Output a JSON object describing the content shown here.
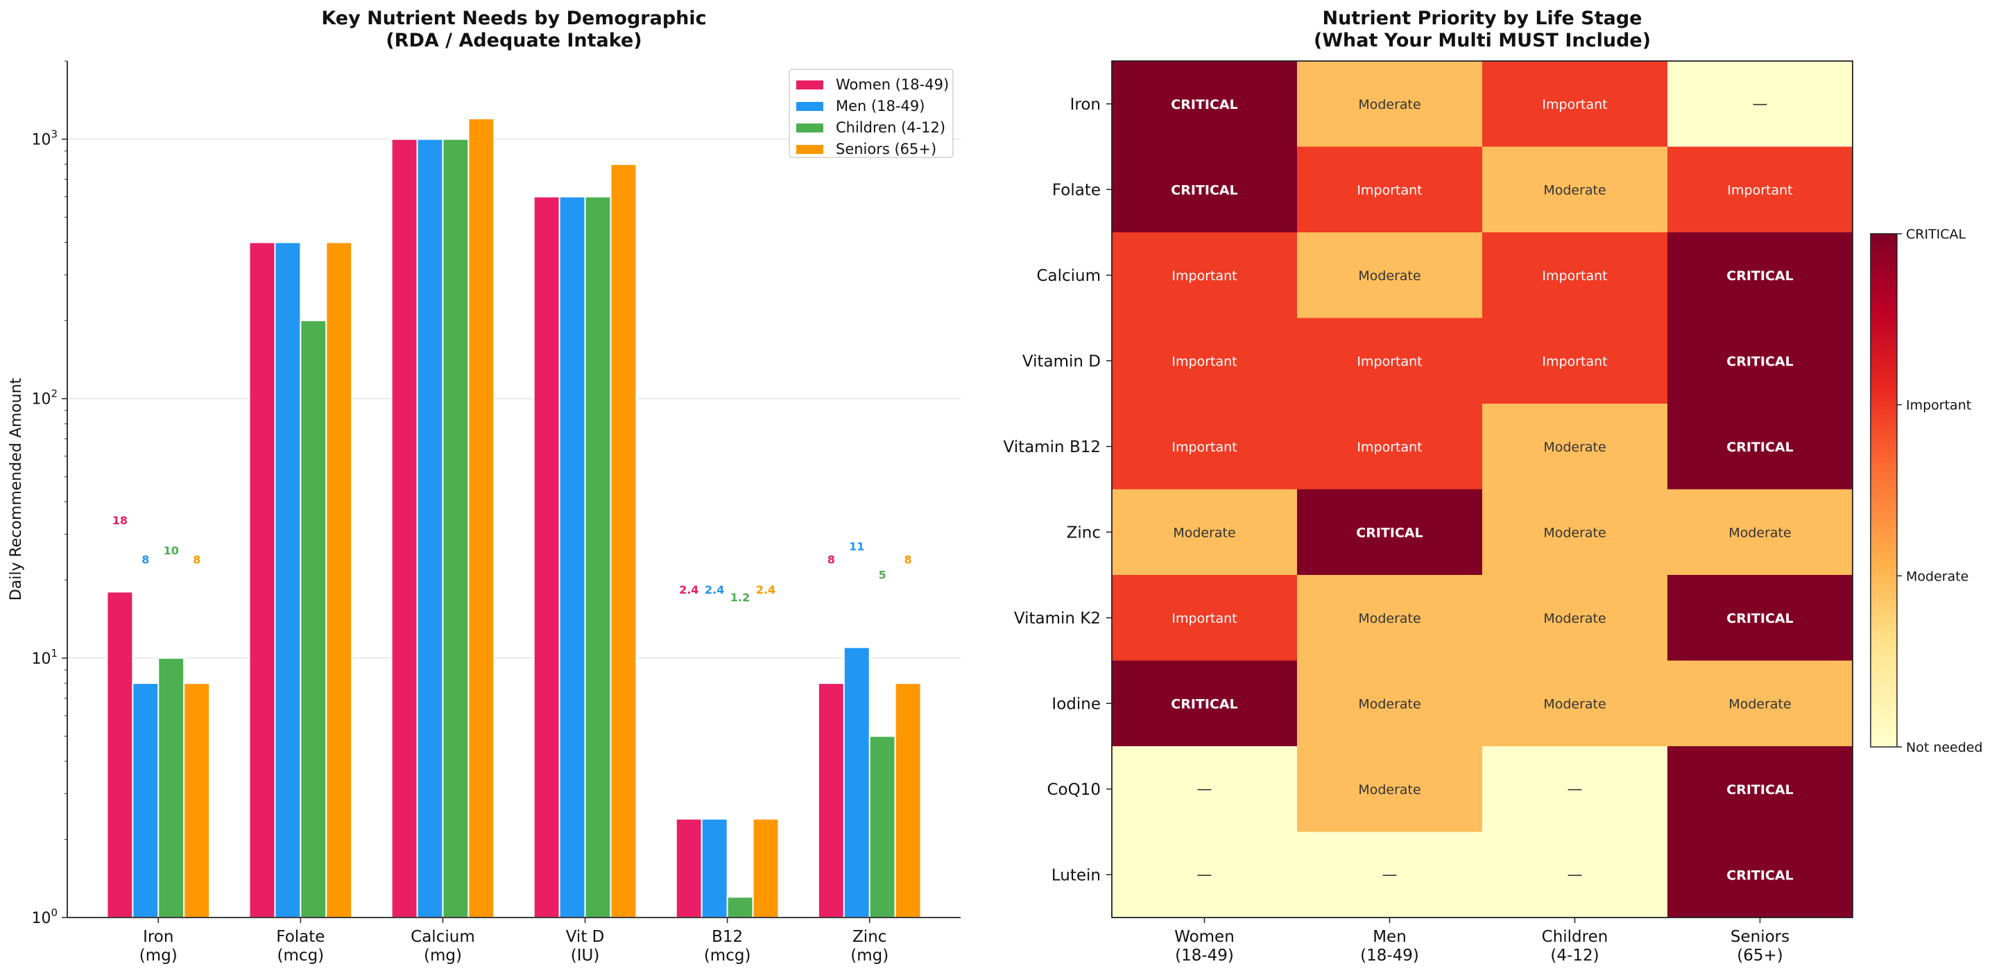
{
  "chart_data": [
    {
      "type": "bar",
      "title": "Key Nutrient Needs by Demographic\n(RDA / Adequate Intake)",
      "xlabel": "",
      "ylabel": "Daily Recommended Amount",
      "yscale": "log",
      "ylim": [
        1,
        2000
      ],
      "yticks": [
        "10^0",
        "10^1",
        "10^2",
        "10^3"
      ],
      "grid": "y",
      "legend": "top-right",
      "categories": [
        "Iron\n(mg)",
        "Folate\n(mcg)",
        "Calcium\n(mg)",
        "Vit D\n(IU)",
        "B12\n(mcg)",
        "Zinc\n(mg)"
      ],
      "series": [
        {
          "name": "Women (18-49)",
          "color": "#E91E63",
          "values": [
            18,
            400,
            1000,
            600,
            2.4,
            8
          ]
        },
        {
          "name": "Men (18-49)",
          "color": "#2196F3",
          "values": [
            8,
            400,
            1000,
            600,
            2.4,
            11
          ]
        },
        {
          "name": "Children (4-12)",
          "color": "#4CAF50",
          "values": [
            10,
            200,
            1000,
            600,
            1.2,
            5
          ]
        },
        {
          "name": "Seniors (65+)",
          "color": "#FF9800",
          "values": [
            8,
            400,
            1200,
            800,
            2.4,
            8
          ]
        }
      ],
      "data_labels": [
        "18",
        "8",
        "10",
        "8",
        "2.4",
        "2.4",
        "1.2",
        "2.4",
        "8",
        "11",
        "5",
        "8"
      ]
    },
    {
      "type": "heatmap",
      "title": "Nutrient Priority by Life Stage\n(What Your Multi MUST Include)",
      "rows": [
        "Iron",
        "Folate",
        "Calcium",
        "Vitamin D",
        "Vitamin B12",
        "Zinc",
        "Vitamin K2",
        "Iodine",
        "CoQ10",
        "Lutein"
      ],
      "columns": [
        "Women\n(18-49)",
        "Men\n(18-49)",
        "Children\n(4-12)",
        "Seniors\n(65+)"
      ],
      "levels": [
        "—",
        "Moderate",
        "Important",
        "CRITICAL"
      ],
      "values": [
        [
          3,
          1,
          2,
          0
        ],
        [
          3,
          2,
          1,
          2
        ],
        [
          2,
          1,
          2,
          3
        ],
        [
          2,
          2,
          2,
          3
        ],
        [
          2,
          2,
          1,
          3
        ],
        [
          1,
          3,
          1,
          1
        ],
        [
          2,
          1,
          1,
          3
        ],
        [
          3,
          1,
          1,
          1
        ],
        [
          0,
          1,
          0,
          3
        ],
        [
          0,
          0,
          0,
          3
        ]
      ],
      "colors": [
        "#FFFFCC",
        "#FEBE5D",
        "#F03B25",
        "#800026"
      ],
      "colorbar": {
        "ticks": [
          "Not needed",
          "Moderate",
          "Important",
          "CRITICAL"
        ],
        "range": [
          0,
          3
        ]
      }
    }
  ]
}
